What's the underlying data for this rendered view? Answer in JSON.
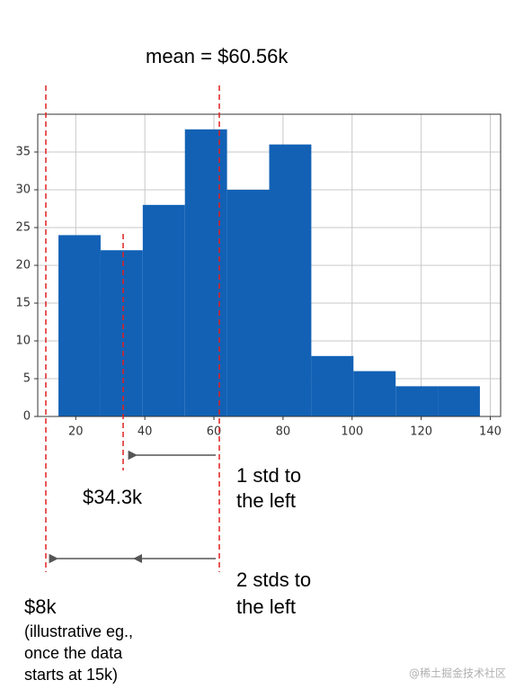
{
  "chart_data": {
    "type": "histogram",
    "bins": [
      15,
      27.2,
      39.4,
      51.6,
      63.8,
      76,
      88.2,
      100.4,
      112.6,
      124.8,
      137
    ],
    "values": [
      24,
      22,
      28,
      38,
      30,
      36,
      8,
      6,
      4,
      4
    ],
    "color": "#1261b5",
    "xlim": [
      9,
      143
    ],
    "ylim": [
      0,
      40
    ],
    "xticks": [
      20,
      40,
      60,
      80,
      100,
      120,
      140
    ],
    "yticks": [
      0,
      5,
      10,
      15,
      20,
      25,
      30,
      35
    ],
    "grid": true,
    "annotations": [
      "mean = $60.56k",
      "$34.3k",
      "1 std to",
      "the left",
      "2 stds to",
      "the left",
      "$8k",
      "(illustrative eg.,",
      "once the data",
      "starts at 15k)"
    ]
  },
  "watermark": "@稀土掘金技术社区"
}
